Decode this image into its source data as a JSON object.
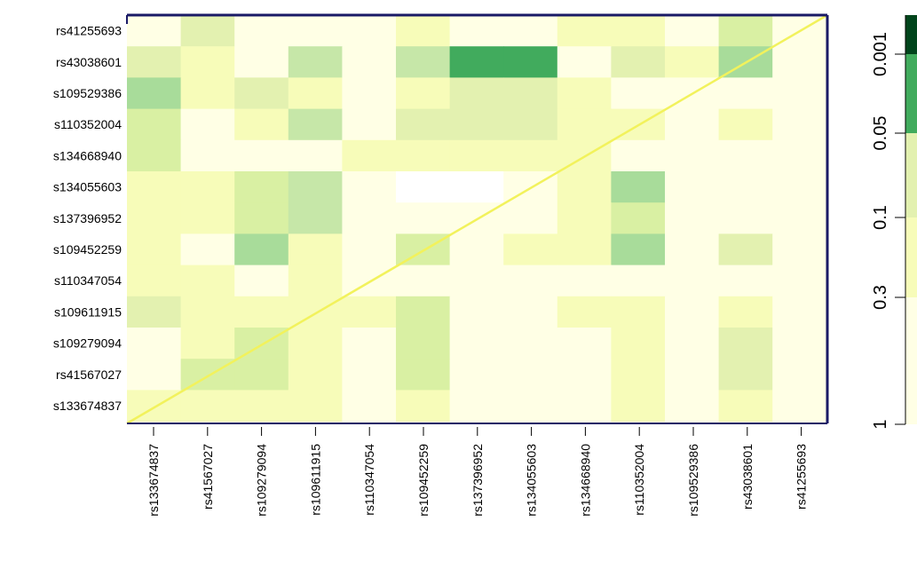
{
  "chart_data": {
    "type": "heatmap",
    "title": "",
    "xlabel": "",
    "ylabel": "",
    "x_labels": [
      "rs133674837",
      "rs41567027",
      "rs109279094",
      "rs109611915",
      "rs110347054",
      "rs109452259",
      "rs137396952",
      "rs134055603",
      "rs134668940",
      "rs110352004",
      "rs109529386",
      "rs43038601",
      "rs41255693"
    ],
    "y_labels": [
      "rs41255693",
      "rs43038601",
      "s109529386",
      "s110352004",
      "s134668940",
      "s134055603",
      "s137396952",
      "s109452259",
      "s110347054",
      "s109611915",
      "s109279094",
      "rs41567027",
      "s133674837"
    ],
    "palette": [
      "#ffffff",
      "#ffffe5",
      "#f7fcb9",
      "#e3f1b0",
      "#d9f0a3",
      "#c6e7a8",
      "#a8dc9a",
      "#8dcc86",
      "#41ab5d",
      "#238443",
      "#00441b"
    ],
    "values": [
      [
        1,
        3,
        1,
        1,
        1,
        2,
        1,
        1,
        2,
        2,
        1,
        4,
        1
      ],
      [
        3,
        2,
        1,
        5,
        1,
        5,
        8,
        8,
        1,
        3,
        2,
        6,
        1
      ],
      [
        6,
        2,
        3,
        2,
        1,
        2,
        3,
        3,
        2,
        1,
        1,
        1,
        1
      ],
      [
        4,
        1,
        2,
        5,
        1,
        3,
        3,
        3,
        2,
        2,
        1,
        2,
        1
      ],
      [
        4,
        1,
        1,
        1,
        2,
        2,
        2,
        2,
        2,
        1,
        1,
        1,
        1
      ],
      [
        2,
        2,
        4,
        5,
        1,
        0,
        0,
        1,
        2,
        6,
        1,
        1,
        1
      ],
      [
        2,
        2,
        4,
        5,
        1,
        1,
        1,
        1,
        2,
        4,
        1,
        1,
        1
      ],
      [
        2,
        1,
        6,
        2,
        1,
        4,
        1,
        2,
        2,
        6,
        1,
        3,
        1
      ],
      [
        2,
        2,
        1,
        2,
        1,
        1,
        1,
        1,
        1,
        1,
        1,
        1,
        1
      ],
      [
        3,
        2,
        2,
        2,
        2,
        4,
        1,
        1,
        2,
        2,
        1,
        2,
        1
      ],
      [
        1,
        2,
        4,
        2,
        1,
        4,
        1,
        1,
        1,
        2,
        1,
        3,
        1
      ],
      [
        1,
        4,
        4,
        2,
        1,
        4,
        1,
        1,
        1,
        2,
        1,
        3,
        1
      ],
      [
        2,
        2,
        2,
        2,
        1,
        2,
        1,
        1,
        1,
        2,
        1,
        2,
        1
      ]
    ],
    "diagonal_line": {
      "from_cell": "bottom-left",
      "to_cell": "top-right",
      "color": "#f2f25c"
    },
    "frame_color": "#1a1a66",
    "colorbar": {
      "tick_labels": [
        "0.001",
        "0.05",
        "0.1",
        "0.3",
        "1"
      ],
      "colors_top_to_bottom": [
        "#00441b",
        "#41ab5d",
        "#e3f1b0",
        "#f7fcb9",
        "#ffffe5"
      ]
    }
  }
}
